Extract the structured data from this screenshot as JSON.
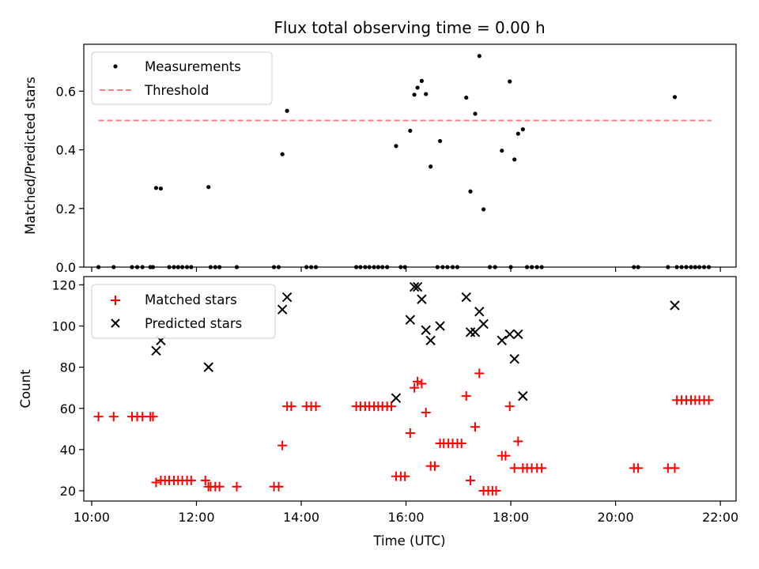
{
  "chart_data": [
    {
      "type": "scatter",
      "title": "Flux total observing time = 0.00 h",
      "xlabel": "",
      "ylabel": "Matched/Predicted stars",
      "xlim": [
        9.85,
        22.3
      ],
      "ylim": [
        0.0,
        0.76
      ],
      "yticks": [
        0.0,
        0.2,
        0.4,
        0.6
      ],
      "ytick_labels": [
        "0.0",
        "0.2",
        "0.4",
        "0.6"
      ],
      "legend": {
        "position": "top-left",
        "entries": [
          "Measurements",
          "Threshold"
        ]
      },
      "threshold": {
        "name": "Threshold",
        "y": 0.5,
        "x_start": 10.13,
        "x_end": 21.83,
        "color": "#ff7f7f",
        "style": "dashed"
      },
      "series": [
        {
          "name": "Measurements",
          "color": "#000000",
          "marker": "dot",
          "points": [
            [
              10.13,
              0
            ],
            [
              10.42,
              0
            ],
            [
              10.77,
              0
            ],
            [
              10.87,
              0
            ],
            [
              10.97,
              0
            ],
            [
              11.12,
              0
            ],
            [
              11.17,
              0
            ],
            [
              11.23,
              0.27
            ],
            [
              11.32,
              0.268
            ],
            [
              11.48,
              0
            ],
            [
              11.57,
              0
            ],
            [
              11.65,
              0
            ],
            [
              11.73,
              0
            ],
            [
              11.82,
              0
            ],
            [
              11.9,
              0
            ],
            [
              12.23,
              0.273
            ],
            [
              12.27,
              0
            ],
            [
              12.36,
              0
            ],
            [
              12.44,
              0
            ],
            [
              12.77,
              0
            ],
            [
              13.48,
              0
            ],
            [
              13.57,
              0
            ],
            [
              13.64,
              0.385
            ],
            [
              13.73,
              0.533
            ],
            [
              14.1,
              0
            ],
            [
              14.19,
              0
            ],
            [
              14.28,
              0
            ],
            [
              15.05,
              0
            ],
            [
              15.13,
              0
            ],
            [
              15.22,
              0
            ],
            [
              15.3,
              0
            ],
            [
              15.39,
              0
            ],
            [
              15.47,
              0
            ],
            [
              15.55,
              0
            ],
            [
              15.64,
              0
            ],
            [
              15.81,
              0.413
            ],
            [
              15.9,
              0
            ],
            [
              15.98,
              0
            ],
            [
              16.08,
              0.465
            ],
            [
              16.16,
              0.588
            ],
            [
              16.22,
              0.612
            ],
            [
              16.3,
              0.635
            ],
            [
              16.38,
              0.59
            ],
            [
              16.47,
              0.343
            ],
            [
              16.65,
              0.43
            ],
            [
              16.6,
              0
            ],
            [
              16.7,
              0
            ],
            [
              16.79,
              0
            ],
            [
              16.89,
              0
            ],
            [
              16.98,
              0
            ],
            [
              17.15,
              0.578
            ],
            [
              17.23,
              0.258
            ],
            [
              17.32,
              0.523
            ],
            [
              17.4,
              0.72
            ],
            [
              17.48,
              0.197
            ],
            [
              17.6,
              0
            ],
            [
              17.7,
              0
            ],
            [
              17.83,
              0.397
            ],
            [
              17.98,
              0.633
            ],
            [
              18.07,
              0.367
            ],
            [
              18.14,
              0.455
            ],
            [
              18.23,
              0.47
            ],
            [
              18.0,
              0
            ],
            [
              18.31,
              0
            ],
            [
              18.4,
              0
            ],
            [
              18.5,
              0
            ],
            [
              18.59,
              0
            ],
            [
              20.35,
              0
            ],
            [
              20.43,
              0
            ],
            [
              21.0,
              0
            ],
            [
              21.13,
              0.58
            ],
            [
              21.17,
              0
            ],
            [
              21.26,
              0
            ],
            [
              21.35,
              0
            ],
            [
              21.44,
              0
            ],
            [
              21.52,
              0
            ],
            [
              21.6,
              0
            ],
            [
              21.69,
              0
            ],
            [
              21.78,
              0
            ]
          ]
        }
      ]
    },
    {
      "type": "scatter",
      "title": "",
      "xlabel": "Time (UTC)",
      "ylabel": "Count",
      "xlim": [
        9.85,
        22.3
      ],
      "ylim": [
        15,
        124
      ],
      "yticks": [
        20,
        40,
        60,
        80,
        100,
        120
      ],
      "ytick_labels": [
        "20",
        "40",
        "60",
        "80",
        "100",
        "120"
      ],
      "xticks": [
        10,
        12,
        14,
        16,
        18,
        20,
        22
      ],
      "xtick_labels": [
        "10:00",
        "12:00",
        "14:00",
        "16:00",
        "18:00",
        "20:00",
        "22:00"
      ],
      "legend": {
        "position": "top-left",
        "entries": [
          "Matched stars",
          "Predicted stars"
        ]
      },
      "series": [
        {
          "name": "Matched stars",
          "color": "#ff0000",
          "marker": "plus",
          "points": [
            [
              10.13,
              56
            ],
            [
              10.42,
              56
            ],
            [
              10.77,
              56
            ],
            [
              10.87,
              56
            ],
            [
              10.97,
              56
            ],
            [
              11.12,
              56
            ],
            [
              11.17,
              56
            ],
            [
              11.23,
              24
            ],
            [
              11.32,
              25
            ],
            [
              11.4,
              25
            ],
            [
              11.48,
              25
            ],
            [
              11.57,
              25
            ],
            [
              11.65,
              25
            ],
            [
              11.73,
              25
            ],
            [
              11.82,
              25
            ],
            [
              11.9,
              25
            ],
            [
              12.17,
              25
            ],
            [
              12.23,
              22
            ],
            [
              12.27,
              22
            ],
            [
              12.36,
              22
            ],
            [
              12.44,
              22
            ],
            [
              12.77,
              22
            ],
            [
              13.48,
              22
            ],
            [
              13.57,
              22
            ],
            [
              13.64,
              42
            ],
            [
              13.73,
              61
            ],
            [
              13.81,
              61
            ],
            [
              14.1,
              61
            ],
            [
              14.19,
              61
            ],
            [
              14.28,
              61
            ],
            [
              15.05,
              61
            ],
            [
              15.13,
              61
            ],
            [
              15.22,
              61
            ],
            [
              15.3,
              61
            ],
            [
              15.39,
              61
            ],
            [
              15.47,
              61
            ],
            [
              15.55,
              61
            ],
            [
              15.64,
              61
            ],
            [
              15.72,
              61
            ],
            [
              15.81,
              27
            ],
            [
              15.9,
              27
            ],
            [
              15.98,
              27
            ],
            [
              16.08,
              48
            ],
            [
              16.16,
              70
            ],
            [
              16.22,
              73
            ],
            [
              16.3,
              72
            ],
            [
              16.38,
              58
            ],
            [
              16.47,
              32
            ],
            [
              16.55,
              32
            ],
            [
              16.65,
              43
            ],
            [
              16.72,
              43
            ],
            [
              16.81,
              43
            ],
            [
              16.89,
              43
            ],
            [
              16.98,
              43
            ],
            [
              17.06,
              43
            ],
            [
              17.15,
              66
            ],
            [
              17.23,
              25
            ],
            [
              17.32,
              51
            ],
            [
              17.4,
              77
            ],
            [
              17.48,
              20
            ],
            [
              17.57,
              20
            ],
            [
              17.65,
              20
            ],
            [
              17.72,
              20
            ],
            [
              17.83,
              37
            ],
            [
              17.9,
              37
            ],
            [
              17.98,
              61
            ],
            [
              18.07,
              31
            ],
            [
              18.14,
              44
            ],
            [
              18.23,
              31
            ],
            [
              18.31,
              31
            ],
            [
              18.4,
              31
            ],
            [
              18.5,
              31
            ],
            [
              18.59,
              31
            ],
            [
              20.35,
              31
            ],
            [
              20.43,
              31
            ],
            [
              21.0,
              31
            ],
            [
              21.13,
              31
            ],
            [
              21.17,
              64
            ],
            [
              21.26,
              64
            ],
            [
              21.35,
              64
            ],
            [
              21.44,
              64
            ],
            [
              21.52,
              64
            ],
            [
              21.6,
              64
            ],
            [
              21.69,
              64
            ],
            [
              21.78,
              64
            ]
          ]
        },
        {
          "name": "Predicted stars",
          "color": "#000000",
          "marker": "x",
          "points": [
            [
              11.23,
              88
            ],
            [
              11.32,
              93
            ],
            [
              12.23,
              80
            ],
            [
              13.64,
              108
            ],
            [
              13.73,
              114
            ],
            [
              15.81,
              65
            ],
            [
              16.08,
              103
            ],
            [
              16.16,
              119
            ],
            [
              16.22,
              119
            ],
            [
              16.3,
              113
            ],
            [
              16.38,
              98
            ],
            [
              16.47,
              93
            ],
            [
              16.65,
              100
            ],
            [
              17.15,
              114
            ],
            [
              17.23,
              97
            ],
            [
              17.32,
              97
            ],
            [
              17.4,
              107
            ],
            [
              17.48,
              101
            ],
            [
              17.83,
              93
            ],
            [
              17.98,
              96
            ],
            [
              18.07,
              84
            ],
            [
              18.14,
              96
            ],
            [
              18.23,
              66
            ],
            [
              21.13,
              110
            ]
          ]
        }
      ]
    }
  ]
}
